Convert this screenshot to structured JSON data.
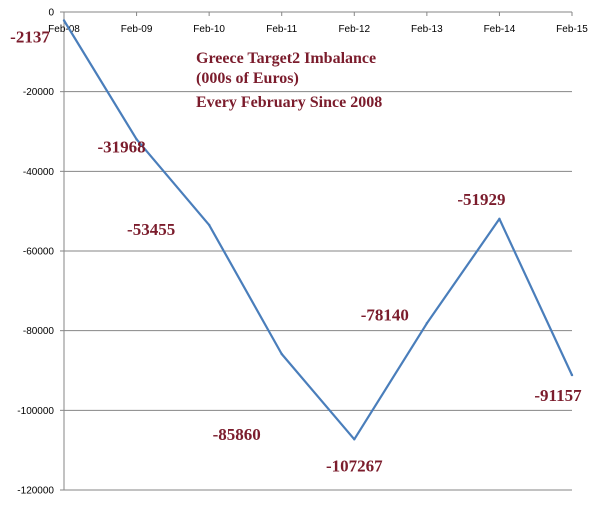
{
  "chart_data": {
    "type": "line",
    "title_lines": [
      "Greece Target2 Imbalance",
      "(000s of Euros)",
      "Every February Since 2008"
    ],
    "categories": [
      "Feb-08",
      "Feb-09",
      "Feb-10",
      "Feb-11",
      "Feb-12",
      "Feb-13",
      "Feb-14",
      "Feb-15"
    ],
    "series": [
      {
        "values": [
          -2137,
          -31968,
          -53455,
          -85860,
          -107267,
          -78140,
          -51929,
          -91157
        ]
      }
    ],
    "data_labels": [
      "-2137",
      "-31968",
      "-53455",
      "-85860",
      "-107267",
      "-78140",
      "-51929",
      "-91157"
    ],
    "y_ticks": [
      "0",
      "-20000",
      "-40000",
      "-60000",
      "-80000",
      "-100000",
      "-120000"
    ],
    "ylim": [
      -120000,
      0
    ],
    "grid": "horizontal",
    "x_axis_position": "top",
    "colors": {
      "line": "#4a7ebb",
      "labels": "#7b1c2c",
      "grid": "#868686"
    }
  }
}
